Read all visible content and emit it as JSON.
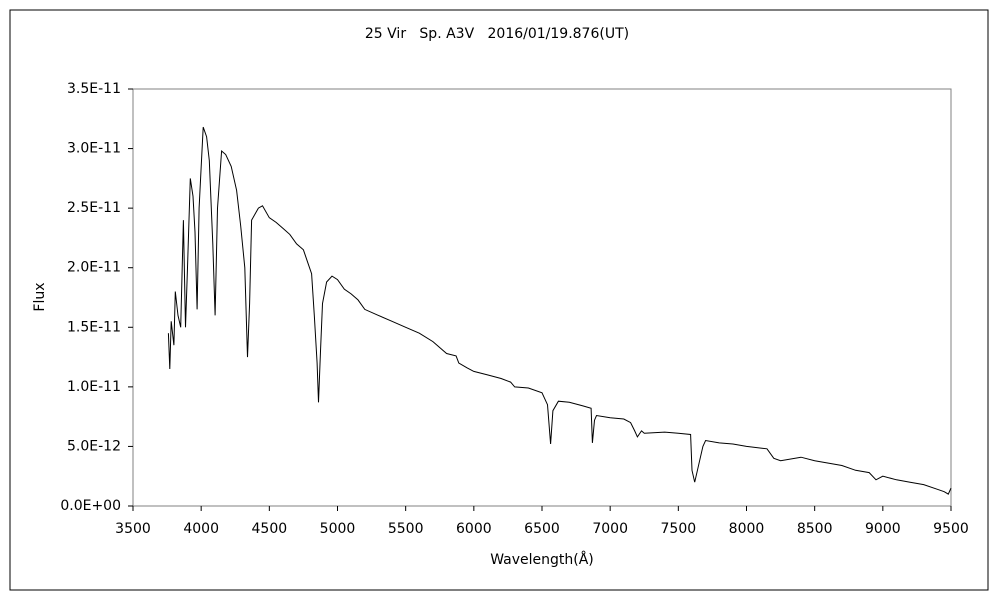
{
  "chart_data": {
    "type": "line",
    "title": "25 Vir   Sp. A3V   2016/01/19.876(UT)",
    "xlabel": "Wavelength(Å)",
    "ylabel": "Flux",
    "color": "#000000",
    "xlim": [
      3500,
      9500
    ],
    "xticks": [
      3500,
      4000,
      4500,
      5000,
      5500,
      6000,
      6500,
      7000,
      7500,
      8000,
      8500,
      9000,
      9500
    ],
    "ylim": [
      0,
      3.5e-11
    ],
    "yticks": [
      {
        "value": 0,
        "label": "0.0E+00"
      },
      {
        "value": 5e-12,
        "label": "5.0E-12"
      },
      {
        "value": 1e-11,
        "label": "1.0E-11"
      },
      {
        "value": 1.5e-11,
        "label": "1.5E-11"
      },
      {
        "value": 2e-11,
        "label": "2.0E-11"
      },
      {
        "value": 2.5e-11,
        "label": "2.5E-11"
      },
      {
        "value": 3e-11,
        "label": "3.0E-11"
      },
      {
        "value": 3.5e-11,
        "label": "3.5E-11"
      }
    ],
    "x": [
      3760,
      3770,
      3780,
      3800,
      3810,
      3830,
      3850,
      3870,
      3885,
      3900,
      3920,
      3940,
      3955,
      3970,
      3985,
      4000,
      4015,
      4040,
      4060,
      4085,
      4102,
      4120,
      4150,
      4180,
      4220,
      4260,
      4290,
      4320,
      4340,
      4355,
      4370,
      4420,
      4450,
      4500,
      4550,
      4600,
      4650,
      4700,
      4750,
      4780,
      4810,
      4830,
      4850,
      4861,
      4875,
      4890,
      4920,
      4960,
      5000,
      5050,
      5100,
      5150,
      5200,
      5300,
      5400,
      5500,
      5600,
      5700,
      5800,
      5870,
      5890,
      5950,
      6000,
      6100,
      6200,
      6270,
      6300,
      6400,
      6500,
      6540,
      6563,
      6580,
      6620,
      6700,
      6800,
      6860,
      6870,
      6885,
      6900,
      7000,
      7100,
      7150,
      7180,
      7200,
      7230,
      7250,
      7400,
      7500,
      7590,
      7600,
      7620,
      7650,
      7680,
      7700,
      7800,
      7900,
      8000,
      8150,
      8200,
      8250,
      8400,
      8500,
      8600,
      8700,
      8800,
      8900,
      8950,
      9000,
      9100,
      9200,
      9300,
      9400,
      9450,
      9480,
      9500
    ],
    "values": [
      1.45e-11,
      1.15e-11,
      1.55e-11,
      1.35e-11,
      1.8e-11,
      1.6e-11,
      1.5e-11,
      2.4e-11,
      1.5e-11,
      2e-11,
      2.75e-11,
      2.6e-11,
      2.3e-11,
      1.65e-11,
      2.5e-11,
      2.85e-11,
      3.18e-11,
      3.1e-11,
      2.9e-11,
      2.2e-11,
      1.6e-11,
      2.5e-11,
      2.98e-11,
      2.95e-11,
      2.85e-11,
      2.65e-11,
      2.35e-11,
      2e-11,
      1.25e-11,
      1.7e-11,
      2.4e-11,
      2.5e-11,
      2.52e-11,
      2.42e-11,
      2.38e-11,
      2.33e-11,
      2.28e-11,
      2.2e-11,
      2.15e-11,
      2.05e-11,
      1.95e-11,
      1.6e-11,
      1.2e-11,
      8.7e-12,
      1.3e-11,
      1.7e-11,
      1.88e-11,
      1.93e-11,
      1.9e-11,
      1.82e-11,
      1.78e-11,
      1.73e-11,
      1.65e-11,
      1.6e-11,
      1.55e-11,
      1.5e-11,
      1.45e-11,
      1.38e-11,
      1.28e-11,
      1.26e-11,
      1.2e-11,
      1.16e-11,
      1.13e-11,
      1.1e-11,
      1.07e-11,
      1.04e-11,
      1e-11,
      9.9e-12,
      9.5e-12,
      8.5e-12,
      5.2e-12,
      8e-12,
      8.8e-12,
      8.7e-12,
      8.4e-12,
      8.2e-12,
      5.3e-12,
      7.2e-12,
      7.6e-12,
      7.4e-12,
      7.3e-12,
      7e-12,
      6.3e-12,
      5.8e-12,
      6.3e-12,
      6.1e-12,
      6.2e-12,
      6.1e-12,
      6e-12,
      3e-12,
      2e-12,
      3.5e-12,
      5e-12,
      5.5e-12,
      5.3e-12,
      5.2e-12,
      5e-12,
      4.8e-12,
      4e-12,
      3.8e-12,
      4.1e-12,
      3.8e-12,
      3.6e-12,
      3.4e-12,
      3e-12,
      2.8e-12,
      2.2e-12,
      2.5e-12,
      2.2e-12,
      2e-12,
      1.8e-12,
      1.4e-12,
      1.2e-12,
      1e-12,
      1.5e-12
    ]
  }
}
